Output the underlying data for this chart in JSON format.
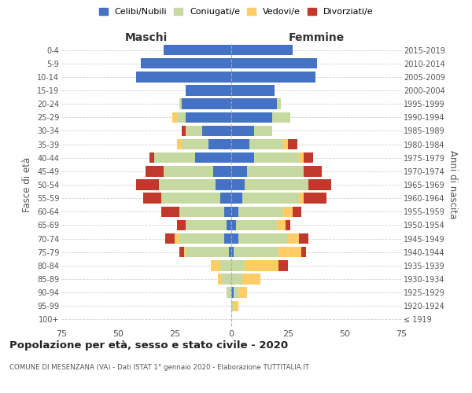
{
  "age_groups": [
    "100+",
    "95-99",
    "90-94",
    "85-89",
    "80-84",
    "75-79",
    "70-74",
    "65-69",
    "60-64",
    "55-59",
    "50-54",
    "45-49",
    "40-44",
    "35-39",
    "30-34",
    "25-29",
    "20-24",
    "15-19",
    "10-14",
    "5-9",
    "0-4"
  ],
  "birth_years": [
    "≤ 1919",
    "1920-1924",
    "1925-1929",
    "1930-1934",
    "1935-1939",
    "1940-1944",
    "1945-1949",
    "1950-1954",
    "1955-1959",
    "1960-1964",
    "1965-1969",
    "1970-1974",
    "1975-1979",
    "1980-1984",
    "1985-1989",
    "1990-1994",
    "1995-1999",
    "2000-2004",
    "2005-2009",
    "2010-2014",
    "2015-2019"
  ],
  "males": {
    "celibi": [
      0,
      0,
      0,
      0,
      0,
      1,
      3,
      2,
      3,
      5,
      7,
      8,
      16,
      10,
      13,
      20,
      22,
      20,
      42,
      40,
      30
    ],
    "coniugati": [
      0,
      0,
      2,
      4,
      5,
      19,
      20,
      18,
      20,
      26,
      25,
      22,
      18,
      12,
      7,
      4,
      1,
      0,
      0,
      0,
      0
    ],
    "vedovi": [
      0,
      0,
      0,
      2,
      4,
      1,
      2,
      0,
      0,
      0,
      0,
      0,
      0,
      2,
      0,
      2,
      0,
      0,
      0,
      0,
      0
    ],
    "divorziati": [
      0,
      0,
      0,
      0,
      0,
      2,
      4,
      4,
      8,
      8,
      10,
      8,
      2,
      0,
      2,
      0,
      0,
      0,
      0,
      0,
      0
    ]
  },
  "females": {
    "nubili": [
      0,
      0,
      1,
      0,
      0,
      1,
      3,
      2,
      3,
      5,
      6,
      7,
      10,
      8,
      10,
      18,
      20,
      19,
      37,
      38,
      27
    ],
    "coniugate": [
      0,
      1,
      2,
      5,
      6,
      20,
      22,
      18,
      20,
      25,
      28,
      25,
      20,
      15,
      8,
      8,
      2,
      0,
      0,
      0,
      0
    ],
    "vedove": [
      0,
      2,
      4,
      8,
      15,
      10,
      5,
      4,
      4,
      2,
      0,
      0,
      2,
      2,
      0,
      0,
      0,
      0,
      0,
      0,
      0
    ],
    "divorziate": [
      0,
      0,
      0,
      0,
      4,
      2,
      4,
      2,
      4,
      10,
      10,
      8,
      4,
      4,
      0,
      0,
      0,
      0,
      0,
      0,
      0
    ]
  },
  "colors": {
    "celibi": "#4472C4",
    "coniugati": "#C6D9A0",
    "vedovi": "#FFCC66",
    "divorziati": "#C0392B"
  },
  "xlim": 75,
  "title": "Popolazione per età, sesso e stato civile - 2020",
  "subtitle": "COMUNE DI MESENZANA (VA) - Dati ISTAT 1° gennaio 2020 - Elaborazione TUTTITALIA.IT",
  "ylabel_left": "Fasce di età",
  "ylabel_right": "Anni di nascita",
  "xlabel_maschi": "Maschi",
  "xlabel_femmine": "Femmine",
  "legend_labels": [
    "Celibi/Nubili",
    "Coniugati/e",
    "Vedovi/e",
    "Divorziati/e"
  ],
  "background_color": "#FFFFFF",
  "grid_color": "#CCCCCC"
}
